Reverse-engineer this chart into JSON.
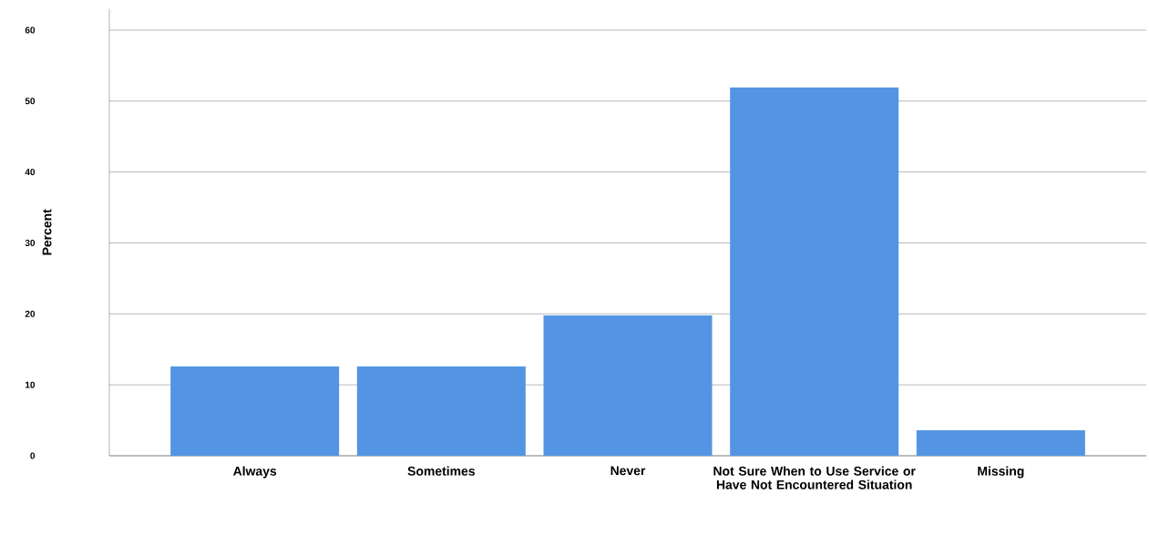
{
  "chart_data": {
    "type": "bar",
    "ylabel": "Percent",
    "categories": [
      "Always",
      "Sometimes",
      "Never",
      "Not Sure When to Use Service or Have Not Encountered Situation",
      "Missing"
    ],
    "values": [
      12.6,
      12.6,
      19.8,
      51.9,
      3.6
    ],
    "color": "#5495e3",
    "ylim": [
      0,
      63
    ],
    "yticks": [
      0,
      10,
      20,
      30,
      40,
      50,
      60
    ],
    "grid": "y"
  }
}
